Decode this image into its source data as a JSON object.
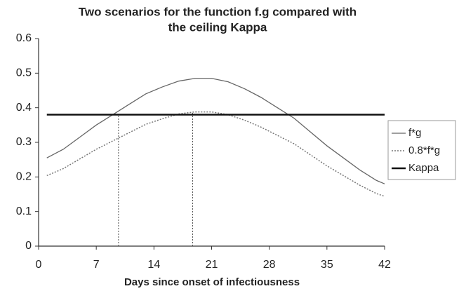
{
  "chart_data": {
    "type": "line",
    "title": [
      "Two scenarios for the function f.g compared with",
      "the ceiling Kappa"
    ],
    "x_label": "Days since onset of infectiousness",
    "x": [
      1,
      3,
      5,
      7,
      9,
      11,
      13,
      15,
      17,
      19,
      21,
      23,
      25,
      27,
      29,
      31,
      33,
      35,
      37,
      39,
      41,
      42
    ],
    "series": [
      {
        "name": "f*g",
        "color": "#666666",
        "style": "solid",
        "values": [
          0.255,
          0.28,
          0.315,
          0.35,
          0.38,
          0.41,
          0.44,
          0.46,
          0.477,
          0.485,
          0.485,
          0.475,
          0.455,
          0.43,
          0.4,
          0.37,
          0.33,
          0.29,
          0.255,
          0.22,
          0.19,
          0.18
        ]
      },
      {
        "name": "0.8*f*g",
        "color": "#777777",
        "style": "dotted",
        "values": [
          0.204,
          0.224,
          0.252,
          0.28,
          0.304,
          0.328,
          0.352,
          0.368,
          0.382,
          0.388,
          0.388,
          0.38,
          0.364,
          0.344,
          0.32,
          0.296,
          0.264,
          0.232,
          0.204,
          0.176,
          0.152,
          0.144
        ]
      },
      {
        "name": "Kappa",
        "color": "#111111",
        "style": "thick",
        "x": [
          1,
          42
        ],
        "values": [
          0.38,
          0.38
        ]
      }
    ],
    "drop_lines": [
      {
        "x": 9.7,
        "y": 0.38
      },
      {
        "x": 18.7,
        "y": 0.388
      }
    ],
    "xlim": [
      0,
      42
    ],
    "xticks": [
      0,
      7,
      14,
      21,
      28,
      35,
      42
    ],
    "ylim": [
      0,
      0.6
    ],
    "yticks": [
      0,
      0.1,
      0.2,
      0.3,
      0.4,
      0.5,
      0.6
    ],
    "grid": false,
    "legend": "right"
  }
}
